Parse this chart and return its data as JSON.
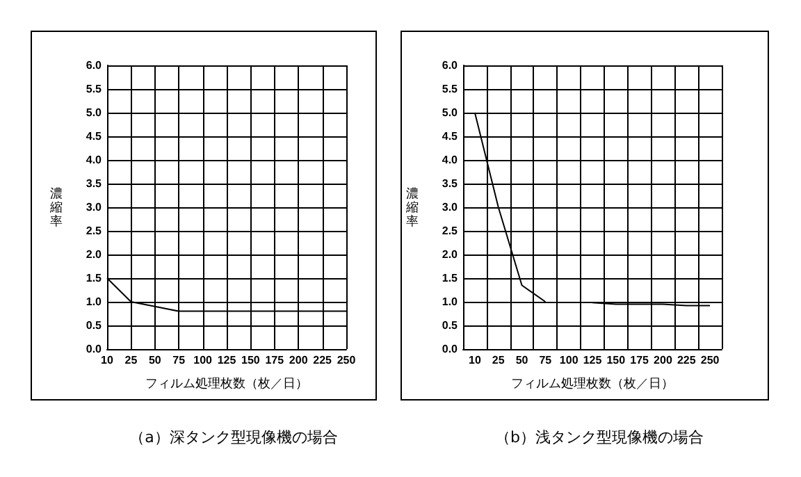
{
  "chart_data": [
    {
      "type": "line",
      "title": "（a）深タンク型現像機の場合",
      "xlabel": "フィルム処理枚数（枚／日）",
      "ylabel": "濃縮率",
      "categories": [
        "10",
        "25",
        "50",
        "75",
        "100",
        "125",
        "150",
        "175",
        "200",
        "225",
        "250"
      ],
      "values": [
        1.5,
        1.0,
        0.9,
        0.8,
        0.8,
        0.8,
        0.8,
        0.8,
        0.8,
        0.8,
        0.8
      ],
      "color": "#000000",
      "ylim": [
        0,
        6
      ],
      "yticks": [
        {
          "value": 0,
          "label": "0.0"
        },
        {
          "value": 0.5,
          "label": "0.5"
        },
        {
          "value": 1,
          "label": "1.0"
        },
        {
          "value": 1.5,
          "label": "1.5"
        },
        {
          "value": 2,
          "label": "2.0"
        },
        {
          "value": 2.5,
          "label": "2.5"
        },
        {
          "value": 3,
          "label": "3.0"
        },
        {
          "value": 3.5,
          "label": "3.5"
        },
        {
          "value": 4,
          "label": "4.0"
        },
        {
          "value": 4.5,
          "label": "4.5"
        },
        {
          "value": 5,
          "label": "5.0"
        },
        {
          "value": 5.5,
          "label": "5.5"
        },
        {
          "value": 6,
          "label": "6.0"
        }
      ],
      "grid": true,
      "marker": "none"
    },
    {
      "type": "line",
      "title": "（b）浅タンク型現像機の場合",
      "xlabel": "フィルム処理枚数（枚／日）",
      "ylabel": "濃縮率",
      "categories": [
        "10",
        "25",
        "50",
        "75",
        "100",
        "125",
        "150",
        "175",
        "200",
        "225",
        "250"
      ],
      "values": [
        5.0,
        3.0,
        1.35,
        1.0,
        null,
        0.98,
        0.95,
        0.95,
        0.95,
        0.92,
        0.92
      ],
      "color": "#000000",
      "ylim": [
        0,
        6
      ],
      "yticks": [
        {
          "value": 0,
          "label": "0.0"
        },
        {
          "value": 0.5,
          "label": "0.5"
        },
        {
          "value": 1,
          "label": "1.0"
        },
        {
          "value": 1.5,
          "label": "1.5"
        },
        {
          "value": 2,
          "label": "2.0"
        },
        {
          "value": 2.5,
          "label": "2.5"
        },
        {
          "value": 3,
          "label": "3.0"
        },
        {
          "value": 3.5,
          "label": "3.5"
        },
        {
          "value": 4,
          "label": "4.0"
        },
        {
          "value": 4.5,
          "label": "4.5"
        },
        {
          "value": 5,
          "label": "5.0"
        },
        {
          "value": 5.5,
          "label": "5.5"
        },
        {
          "value": 6,
          "label": "6.0"
        }
      ],
      "grid": true,
      "marker": "none"
    }
  ]
}
